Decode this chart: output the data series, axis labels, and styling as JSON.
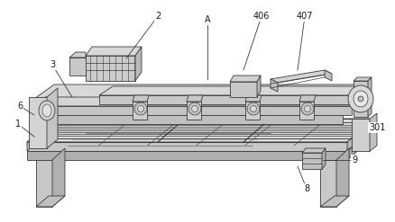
{
  "bg_color": "#ffffff",
  "lc": "#3a3a3a",
  "fc_light": "#e8e8e8",
  "fc_mid": "#d0d0d0",
  "fc_dark": "#b8b8b8",
  "fc_darker": "#a0a0a0",
  "figsize": [
    4.38,
    2.47
  ],
  "dpi": 100
}
